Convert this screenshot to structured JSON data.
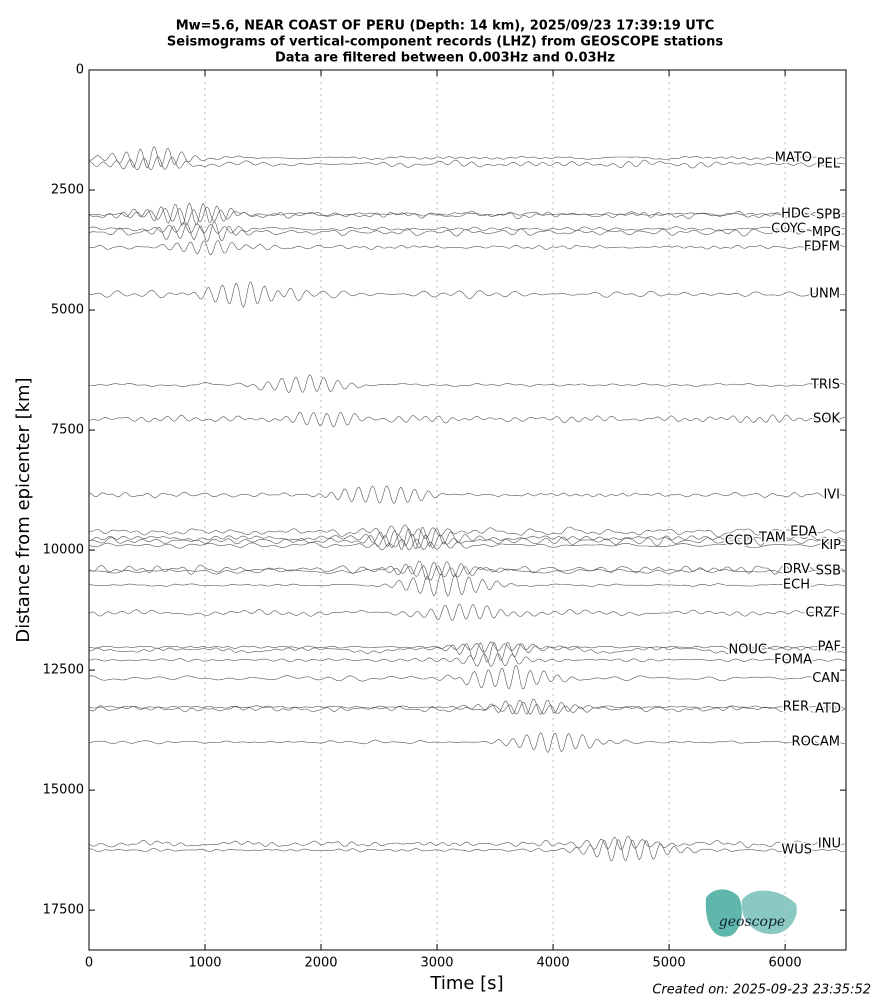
{
  "chart_data": {
    "type": "seismogram",
    "title": [
      "Mw=5.6, NEAR COAST OF PERU (Depth: 14 km), 2025/09/23 17:39:19 UTC",
      "Seismograms of vertical-component records (LHZ) from GEOSCOPE stations",
      "Data are filtered between 0.003Hz and 0.03Hz"
    ],
    "x_label": "Time [s]",
    "y_label": "Distance from epicenter [km]",
    "xlim": [
      0,
      6525
    ],
    "xticks": [
      0,
      1000,
      2000,
      3000,
      4000,
      5000,
      6000
    ],
    "ylim": [
      18330,
      0
    ],
    "yticks": [
      0,
      2500,
      5000,
      7500,
      10000,
      12500,
      15000,
      17500
    ],
    "grid": true,
    "color": "#555555",
    "categories": [
      "MATO",
      "PEL",
      "HDC",
      "SPB",
      "COYC",
      "MPG",
      "FDFM",
      "UNM",
      "TRIS",
      "SOK",
      "IVI",
      "EDA",
      "TAM",
      "CCD",
      "KIP",
      "DRV",
      "SSB",
      "ECH",
      "CRZF",
      "PAF",
      "NOUC",
      "FOMA",
      "CAN",
      "RER",
      "ATD",
      "ROCAM",
      "INU",
      "WUS"
    ],
    "values": [
      1830,
      1960,
      3000,
      3020,
      3310,
      3380,
      3690,
      4670,
      6560,
      7270,
      8850,
      9620,
      9750,
      9810,
      9900,
      10400,
      10440,
      10730,
      11310,
      12020,
      12080,
      12290,
      12670,
      13270,
      13310,
      14000,
      16120,
      16250
    ],
    "footer": "Created on: 2025-09-23 23:35:52",
    "logo_text": "geoscope"
  }
}
